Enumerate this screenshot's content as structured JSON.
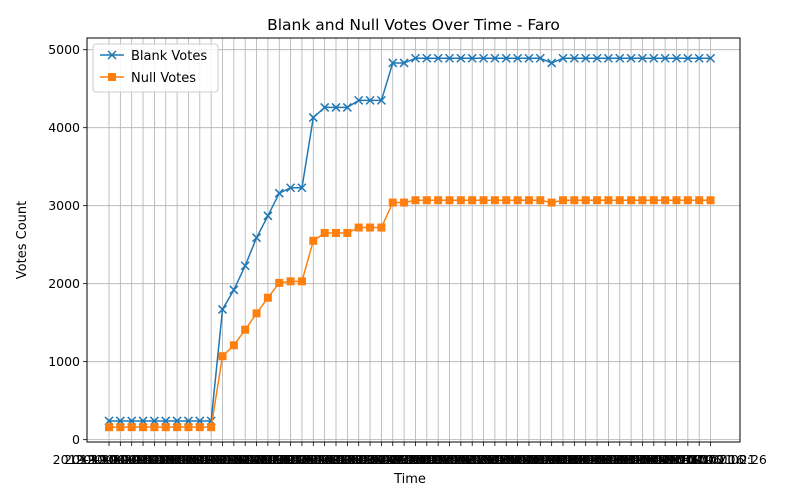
{
  "chart_data": {
    "type": "line",
    "title": "Blank and Null Votes Over Time - Faro",
    "xlabel": "Time",
    "ylabel": "Votes Count",
    "ylim": [
      -30,
      5150
    ],
    "yticks": [
      0,
      1000,
      2000,
      3000,
      4000,
      5000
    ],
    "grid": true,
    "legend_position": "top-left",
    "x": [
      "2019-10-06 20:01",
      "2019-10-06 20:06",
      "2019-10-06 20:11",
      "2019-10-06 20:16",
      "2019-10-06 20:21",
      "2019-10-06 20:26",
      "2019-10-06 20:31",
      "2019-10-06 20:36",
      "2019-10-06 20:41",
      "2019-10-06 20:46",
      "2019-10-06 20:51",
      "2019-10-06 20:56",
      "2019-10-06 21:01",
      "2019-10-06 21:06",
      "2019-10-06 21:11",
      "2019-10-06 21:16",
      "2019-10-06 21:21",
      "2019-10-06 21:26",
      "2019-10-06 21:31",
      "2019-10-06 21:36",
      "2019-10-06 21:41",
      "2019-10-06 21:46",
      "2019-10-06 21:51",
      "2019-10-06 21:56",
      "2019-10-06 22:01",
      "2019-10-06 22:06",
      "2019-10-06 22:11",
      "2019-10-06 22:16",
      "2019-10-06 22:21",
      "2019-10-06 22:26",
      "2019-10-06 22:31",
      "2019-10-06 22:36",
      "2019-10-06 22:41",
      "2019-10-06 22:46",
      "2019-10-06 22:51",
      "2019-10-06 22:56",
      "2019-10-06 23:01",
      "2019-10-06 23:06",
      "2019-10-06 23:11",
      "2019-10-06 23:16",
      "2019-10-06 23:21",
      "2019-10-06 23:26",
      "2019-10-06 23:31",
      "2019-10-06 23:36",
      "2019-10-06 23:41",
      "2019-10-06 23:46",
      "2019-10-06 23:51",
      "2019-10-06 23:56",
      "2019-10-07 00:01",
      "2019-10-07 00:06",
      "2019-10-07 00:11",
      "2019-10-07 00:16",
      "2019-10-07 00:21",
      "2019-10-07 00:26"
    ],
    "series": [
      {
        "name": "Blank Votes",
        "color": "#1f77b4",
        "marker": "x",
        "values": [
          240,
          240,
          240,
          240,
          240,
          240,
          240,
          240,
          240,
          240,
          1670,
          1920,
          2230,
          2590,
          2870,
          3160,
          3230,
          3230,
          4130,
          4260,
          4260,
          4260,
          4350,
          4350,
          4350,
          4830,
          4830,
          4890,
          4890,
          4890,
          4890,
          4890,
          4890,
          4890,
          4890,
          4890,
          4890,
          4890,
          4890,
          4830,
          4890,
          4890,
          4890,
          4890,
          4890,
          4890,
          4890,
          4890,
          4890,
          4890,
          4890,
          4890,
          4890,
          4890
        ]
      },
      {
        "name": "Null Votes",
        "color": "#ff7f0e",
        "marker": "s",
        "values": [
          160,
          160,
          160,
          160,
          160,
          160,
          160,
          160,
          160,
          160,
          1070,
          1210,
          1410,
          1620,
          1820,
          2010,
          2030,
          2030,
          2550,
          2650,
          2650,
          2650,
          2720,
          2720,
          2720,
          3040,
          3040,
          3070,
          3070,
          3070,
          3070,
          3070,
          3070,
          3070,
          3070,
          3070,
          3070,
          3070,
          3070,
          3040,
          3070,
          3070,
          3070,
          3070,
          3070,
          3070,
          3070,
          3070,
          3070,
          3070,
          3070,
          3070,
          3070,
          3070
        ]
      }
    ]
  }
}
